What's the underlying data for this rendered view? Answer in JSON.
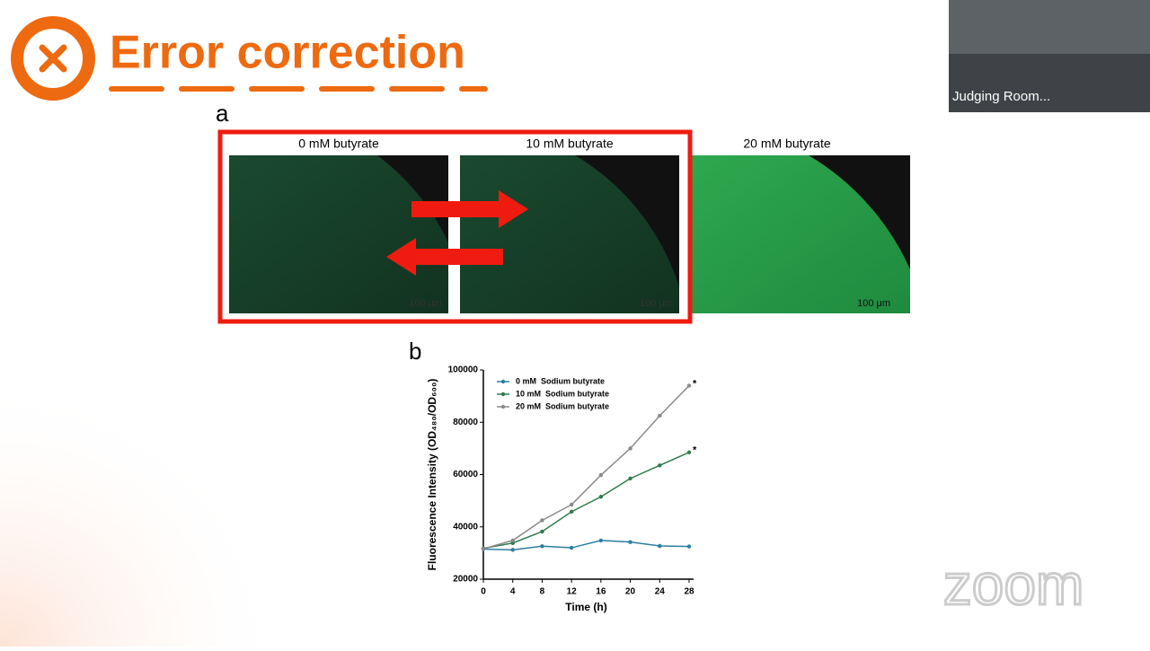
{
  "header": {
    "title": "Error correction"
  },
  "panel_a": {
    "label": "a",
    "images": [
      {
        "label": "0 mM butyrate",
        "scale": "100 μm"
      },
      {
        "label": "10 mM butyrate",
        "scale": "100 μm"
      },
      {
        "label": "20 mM butyrate",
        "scale": "100 μm"
      }
    ]
  },
  "panel_b": {
    "label": "b"
  },
  "video": {
    "label": "Judging Room..."
  },
  "watermark": "zoom",
  "chart_data": {
    "type": "line",
    "x_label": "Time (h)",
    "y_label": "Fluorescence Intensity (OD₄₈₀/OD₆₀₀)",
    "x": [
      0,
      4,
      8,
      12,
      16,
      20,
      24,
      28
    ],
    "xlim": [
      0,
      28
    ],
    "xticks": [
      0,
      4,
      8,
      12,
      16,
      20,
      24,
      28
    ],
    "ylim": [
      20000,
      100000
    ],
    "yticks": [
      20000,
      40000,
      60000,
      80000,
      100000
    ],
    "legend": "upper left",
    "series": [
      {
        "name": "0 mM  Sodium butyrate",
        "color": "#2b7ea1",
        "values": [
          31500,
          31200,
          32600,
          32000,
          34800,
          34200,
          32700,
          32500
        ]
      },
      {
        "name": "10 mM  Sodium butyrate",
        "color": "#2e7a50",
        "values": [
          31800,
          33800,
          38200,
          45800,
          51500,
          58500,
          63500,
          68500
        ]
      },
      {
        "name": "20 mM  Sodium butyrate",
        "color": "#8a8a8a",
        "values": [
          31600,
          34800,
          42500,
          48500,
          59800,
          70000,
          82500,
          94000
        ]
      }
    ],
    "annotations": [
      "*",
      "*"
    ]
  }
}
